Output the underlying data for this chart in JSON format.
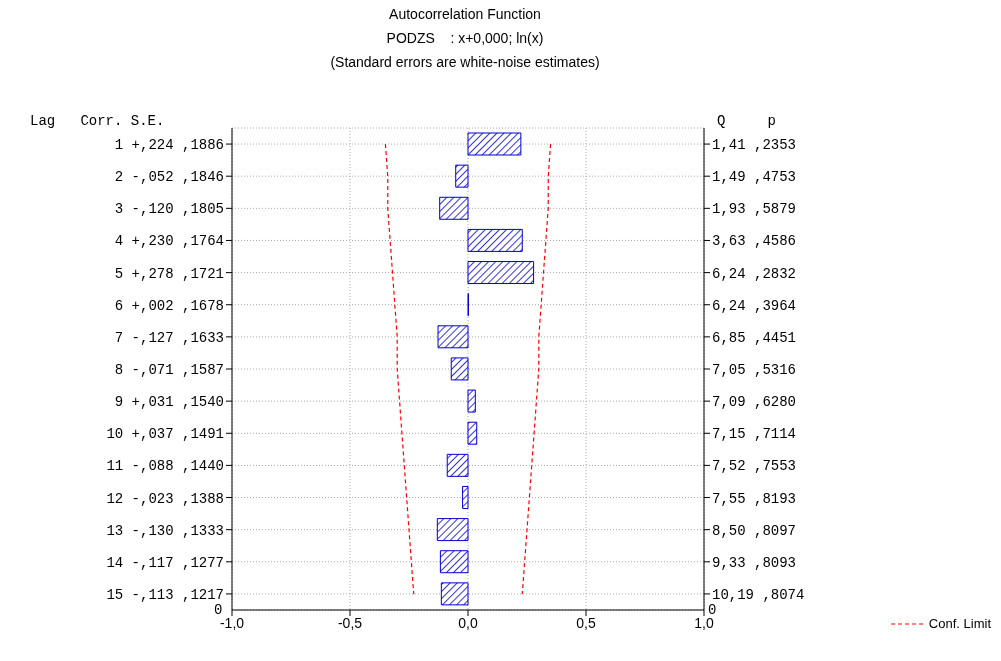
{
  "chart_data": {
    "type": "bar",
    "orientation": "horizontal",
    "title": "Autocorrelation Function",
    "subtitle": "PODZS    : x+0,000; ln(x)",
    "annotations": [
      "(Standard errors are white-noise estimates)",
      "Lag   Corr. S.E.",
      "Q     p",
      "0",
      "0"
    ],
    "categories": [
      "1   +,224 ,1886",
      "2   -,052 ,1846",
      "3   -,120 ,1805",
      "4   +,230 ,1764",
      "5   +,278 ,1721",
      "6   +,002 ,1678",
      "7   -,127 ,1633",
      "8   -,071 ,1587",
      "9   +,031 ,1540",
      "10  +,037 ,1491",
      "11  -,088 ,1440",
      "12  -,023 ,1388",
      "13  -,130 ,1333",
      "14  -,117 ,1277",
      "15  -,113 ,1217"
    ],
    "y2_categories": [
      "1,41 ,2353",
      "1,49 ,4753",
      "1,93 ,5879",
      "3,63 ,4586",
      "6,24 ,2832",
      "6,24 ,3964",
      "6,85 ,4451",
      "7,05 ,5316",
      "7,09 ,6280",
      "7,15 ,7114",
      "7,52 ,7553",
      "7,55 ,8193",
      "8,50 ,8097",
      "9,33 ,8093",
      "10,19 ,8074"
    ],
    "series": [
      {
        "color": "#0000cc",
        "values": [
          0.224,
          -0.052,
          -0.12,
          0.23,
          0.278,
          0.002,
          -0.127,
          -0.071,
          0.031,
          0.037,
          -0.088,
          -0.023,
          -0.13,
          -0.117,
          -0.113
        ]
      },
      {
        "type": "line",
        "name": "Conf. Limit",
        "color": "#ff0000",
        "line_style": "dashed",
        "values": [
          0.35,
          0.34,
          0.34,
          0.33,
          0.32,
          0.31,
          0.3,
          0.3,
          0.29,
          0.28,
          0.27,
          0.26,
          0.25,
          0.24,
          0.23
        ]
      },
      {
        "type": "line",
        "color": "#ff0000",
        "line_style": "dashed",
        "values": [
          -0.35,
          -0.34,
          -0.34,
          -0.33,
          -0.32,
          -0.31,
          -0.3,
          -0.3,
          -0.29,
          -0.28,
          -0.27,
          -0.26,
          -0.25,
          -0.24,
          -0.23
        ]
      }
    ],
    "xlim": [
      -1,
      1
    ],
    "xticks": [
      {
        "value": -1,
        "label": "-1,0"
      },
      {
        "value": -0.5,
        "label": "-0,5"
      },
      {
        "value": 0,
        "label": "0,0"
      },
      {
        "value": 0.5,
        "label": "0,5"
      },
      {
        "value": 1,
        "label": "1,0"
      }
    ],
    "grid": true,
    "legend": "bottom right"
  }
}
